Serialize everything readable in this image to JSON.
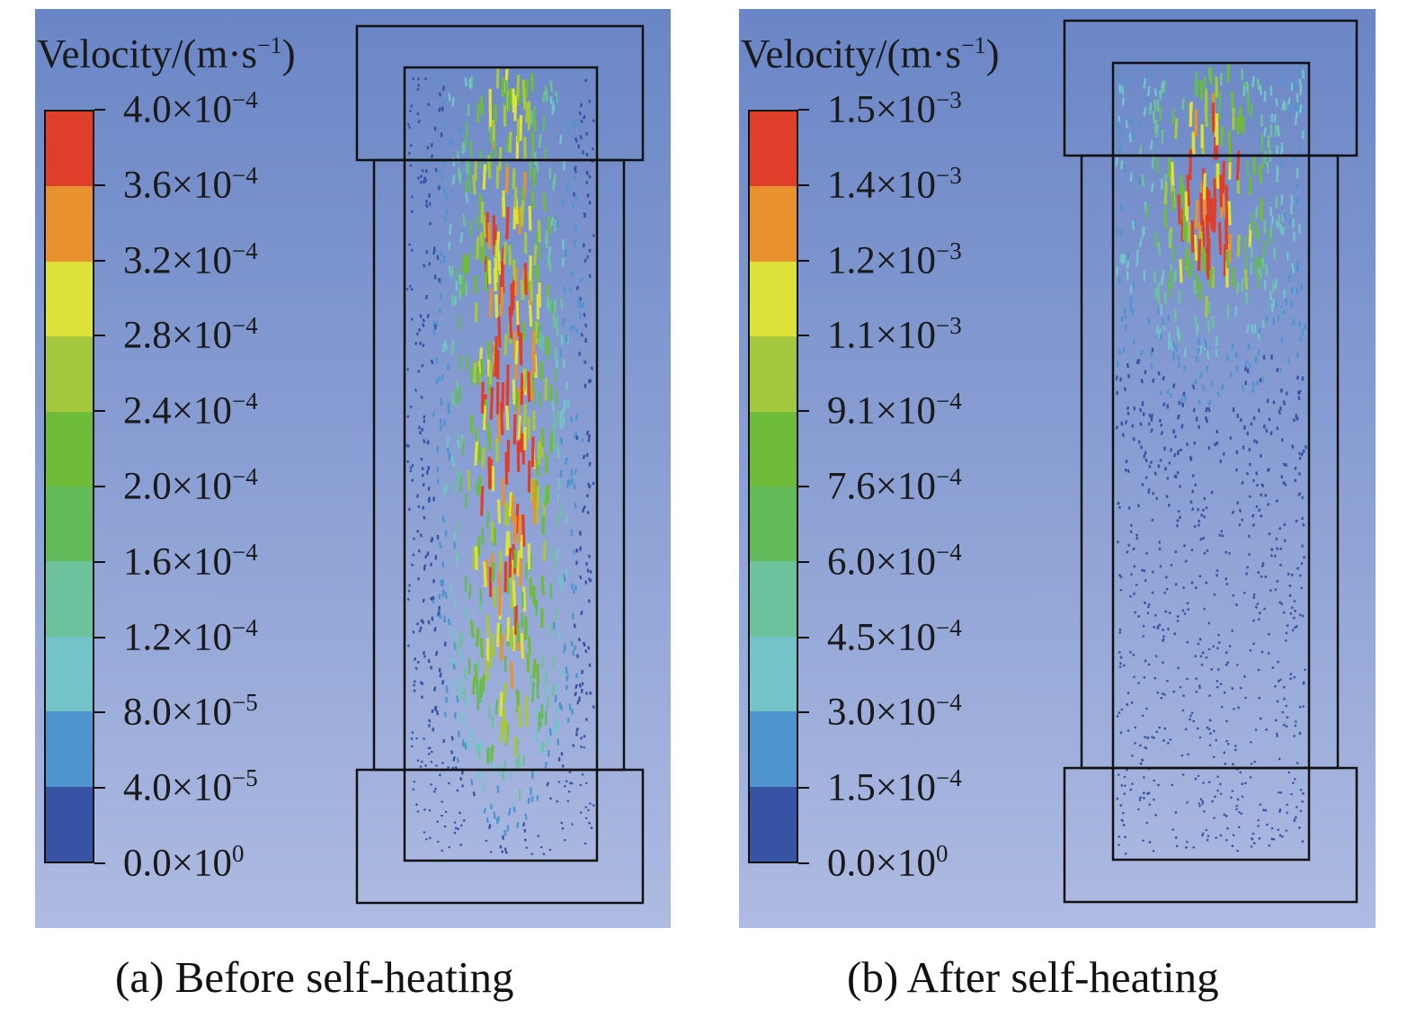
{
  "panels": [
    {
      "id": "a",
      "legend_title": {
        "text": "Velocity/(m·s",
        "sup": "−1",
        "close": ")"
      },
      "ticks": [
        {
          "mant": "4.0×10",
          "exp": "−4"
        },
        {
          "mant": "3.6×10",
          "exp": "−4"
        },
        {
          "mant": "3.2×10",
          "exp": "−4"
        },
        {
          "mant": "2.8×10",
          "exp": "−4"
        },
        {
          "mant": "2.4×10",
          "exp": "−4"
        },
        {
          "mant": "2.0×10",
          "exp": "−4"
        },
        {
          "mant": "1.6×10",
          "exp": "−4"
        },
        {
          "mant": "1.2×10",
          "exp": "−4"
        },
        {
          "mant": "8.0×10",
          "exp": "−5"
        },
        {
          "mant": "4.0×10",
          "exp": "−5"
        },
        {
          "mant": "0.0×10",
          "exp": "0"
        }
      ],
      "caption": "(a)  Before self-heating"
    },
    {
      "id": "b",
      "legend_title": {
        "text": "Velocity/(m·s",
        "sup": "−1",
        "close": ")"
      },
      "ticks": [
        {
          "mant": "1.5×10",
          "exp": "−3"
        },
        {
          "mant": "1.4×10",
          "exp": "−3"
        },
        {
          "mant": "1.2×10",
          "exp": "−3"
        },
        {
          "mant": "1.1×10",
          "exp": "−3"
        },
        {
          "mant": "9.1×10",
          "exp": "−4"
        },
        {
          "mant": "7.6×10",
          "exp": "−4"
        },
        {
          "mant": "6.0×10",
          "exp": "−4"
        },
        {
          "mant": "4.5×10",
          "exp": "−4"
        },
        {
          "mant": "3.0×10",
          "exp": "−4"
        },
        {
          "mant": "1.5×10",
          "exp": "−4"
        },
        {
          "mant": "0.0×10",
          "exp": "0"
        }
      ],
      "caption": "(b) After self-heating"
    }
  ],
  "colormap": [
    "#3953a4",
    "#4e95d0",
    "#72c4c8",
    "#6cc29a",
    "#63ba5b",
    "#6fbb3a",
    "#a5c73d",
    "#dde23b",
    "#e8912f",
    "#df3f2a"
  ]
}
